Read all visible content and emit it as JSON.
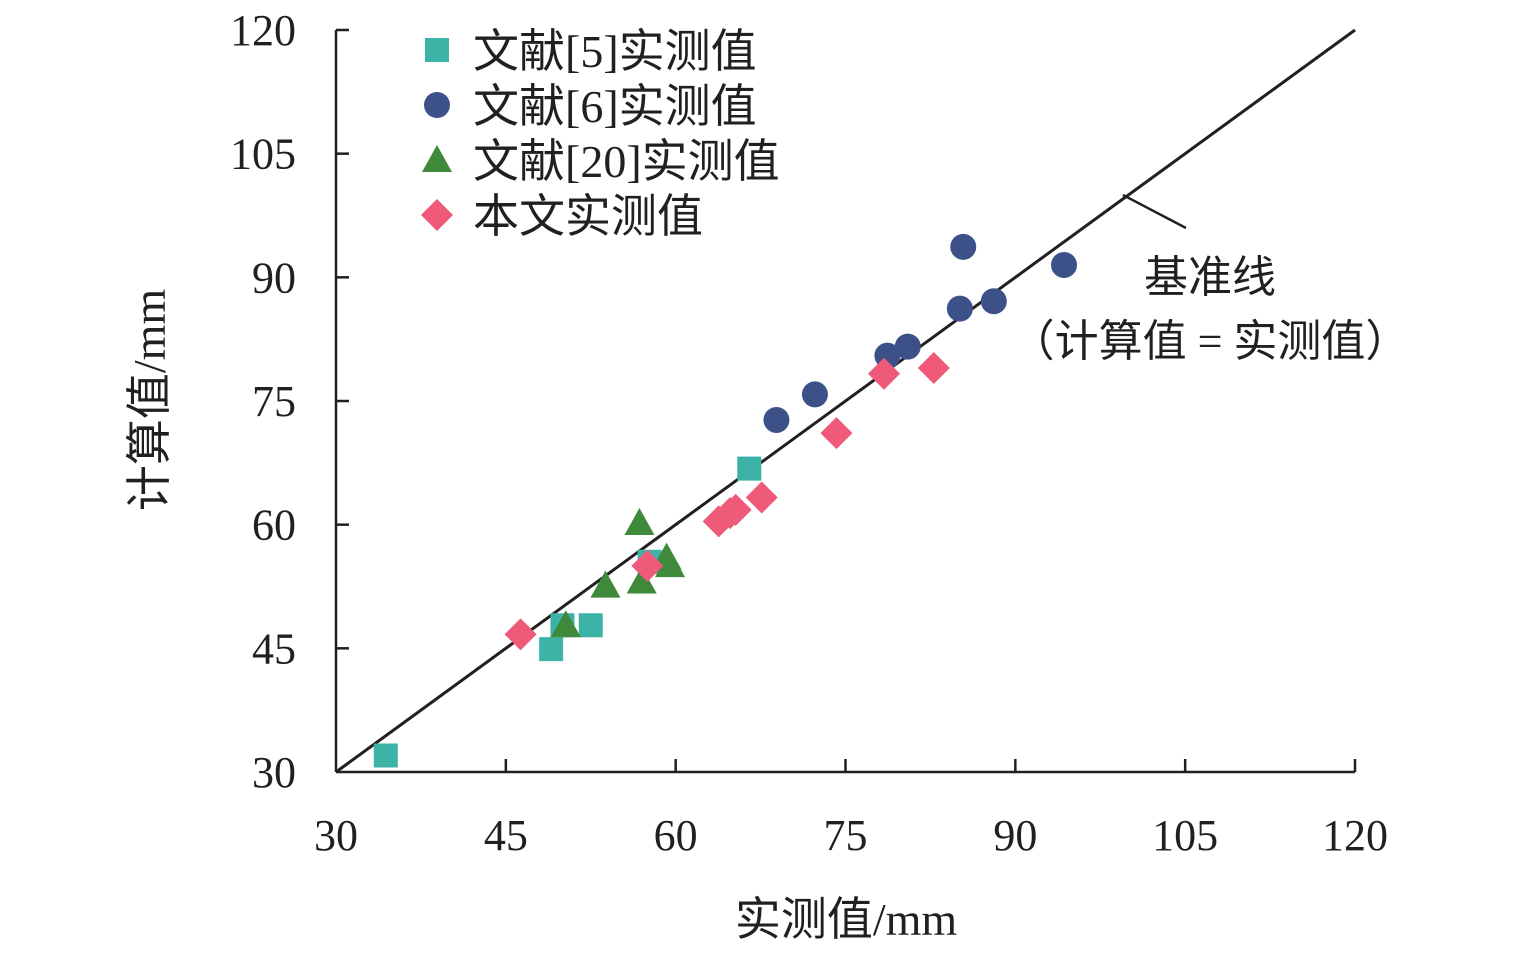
{
  "chart_data": {
    "type": "scatter",
    "xlabel": "实测值/mm",
    "ylabel": "计算值/mm",
    "xlim": [
      30,
      120
    ],
    "ylim": [
      30,
      120
    ],
    "xticks": [
      30,
      45,
      60,
      75,
      90,
      105,
      120
    ],
    "yticks": [
      30,
      45,
      60,
      75,
      90,
      105,
      120
    ],
    "grid": false,
    "legend_position": "top-left",
    "series": [
      {
        "name": "文献[5]实测值",
        "marker": "square",
        "color": "#3db3a8",
        "points": [
          [
            34.4,
            32
          ],
          [
            49,
            44.9
          ],
          [
            52.5,
            47.8
          ],
          [
            50,
            47.8
          ],
          [
            57.7,
            55.5
          ],
          [
            66.5,
            66.8
          ]
        ]
      },
      {
        "name": "文献[6]实测值",
        "marker": "circle",
        "color": "#3d5189",
        "points": [
          [
            68.9,
            72.7
          ],
          [
            72.3,
            75.8
          ],
          [
            78.7,
            80.5
          ],
          [
            80.5,
            81.6
          ],
          [
            85.1,
            86.2
          ],
          [
            85.4,
            93.7
          ],
          [
            88.1,
            87.1
          ],
          [
            94.3,
            91.5
          ]
        ]
      },
      {
        "name": "文献[20]实测值",
        "marker": "triangle",
        "color": "#3e8a3a",
        "points": [
          [
            50.3,
            47.8
          ],
          [
            53.8,
            52.6
          ],
          [
            57,
            53.1
          ],
          [
            56.8,
            60.2
          ],
          [
            59.5,
            55.1
          ],
          [
            59.2,
            56
          ]
        ]
      },
      {
        "name": "本文实测值",
        "marker": "diamond",
        "color": "#ee5a78",
        "points": [
          [
            46.3,
            46.7
          ],
          [
            57.5,
            55
          ],
          [
            63.8,
            60.4
          ],
          [
            64.8,
            61.4
          ],
          [
            65.3,
            61.8
          ],
          [
            67.6,
            63.3
          ],
          [
            74.2,
            71.1
          ],
          [
            78.4,
            78.3
          ],
          [
            82.8,
            79
          ]
        ]
      }
    ],
    "reference_line": {
      "from": [
        30,
        30
      ],
      "to": [
        120,
        120
      ],
      "label": "基准线",
      "sublabel": "（计算值 = 实测值）"
    }
  }
}
